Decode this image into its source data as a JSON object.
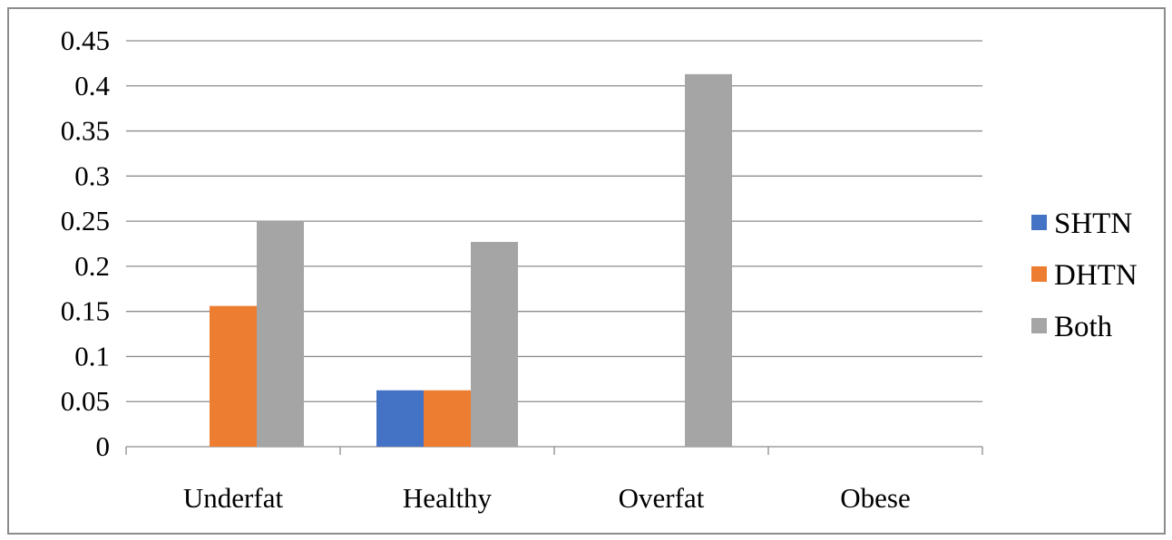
{
  "chart_data": {
    "type": "bar",
    "categories": [
      "Underfat",
      "Healthy",
      "Overfat",
      "Obese"
    ],
    "series": [
      {
        "name": "SHTN",
        "values": [
          0,
          0.0625,
          0,
          0
        ],
        "color": "#4472C4"
      },
      {
        "name": "DHTN",
        "values": [
          0.156,
          0.0625,
          0,
          0
        ],
        "color": "#ED7D31"
      },
      {
        "name": "Both",
        "values": [
          0.25,
          0.227,
          0.413,
          0
        ],
        "color": "#A5A5A5"
      }
    ],
    "yticks": [
      "0",
      "0.05",
      "0.1",
      "0.15",
      "0.2",
      "0.25",
      "0.3",
      "0.35",
      "0.4",
      "0.45"
    ],
    "ylim": [
      0,
      0.45
    ],
    "grid": true,
    "legend_position": "right"
  }
}
